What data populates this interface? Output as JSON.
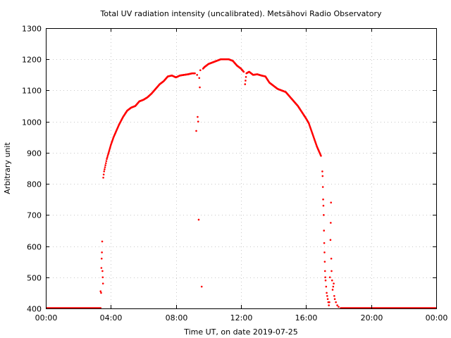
{
  "chart_data": {
    "type": "scatter",
    "title": "Total UV radiation intensity (uncalibrated). Metsähovi Radio Observatory",
    "xlabel": "Time UT, on date 2019-07-25",
    "ylabel": "Arbitrary unit",
    "xlim": [
      "00:00",
      "24:00"
    ],
    "ylim": [
      400,
      1300
    ],
    "x_ticks": [
      "00:00",
      "04:00",
      "08:00",
      "12:00",
      "16:00",
      "20:00",
      "00:00"
    ],
    "y_ticks": [
      400,
      500,
      600,
      700,
      800,
      900,
      1000,
      1100,
      1200,
      1300
    ],
    "grid": true,
    "point_color": "#ff0000",
    "baseline_value": 400,
    "baseline_ranges": [
      [
        "00:00",
        "03:25"
      ],
      [
        "18:05",
        "24:00"
      ]
    ],
    "series": [
      {
        "points": [
          [
            "03:22",
            455
          ],
          [
            "03:24",
            450
          ],
          [
            "03:25",
            530
          ],
          [
            "03:26",
            560
          ],
          [
            "03:27",
            580
          ],
          [
            "03:28",
            615
          ],
          [
            "03:29",
            520
          ],
          [
            "03:30",
            500
          ],
          [
            "03:31",
            480
          ],
          [
            "03:32",
            820
          ],
          [
            "03:35",
            840
          ],
          [
            "03:40",
            860
          ],
          [
            "03:45",
            880
          ],
          [
            "03:50",
            895
          ],
          [
            "04:00",
            925
          ],
          [
            "04:10",
            950
          ],
          [
            "04:20",
            970
          ],
          [
            "04:30",
            990
          ],
          [
            "04:45",
            1015
          ],
          [
            "05:00",
            1035
          ],
          [
            "05:15",
            1045
          ],
          [
            "05:30",
            1050
          ],
          [
            "05:45",
            1065
          ],
          [
            "06:00",
            1070
          ],
          [
            "06:15",
            1078
          ],
          [
            "06:30",
            1090
          ],
          [
            "06:45",
            1105
          ],
          [
            "07:00",
            1120
          ],
          [
            "07:15",
            1130
          ],
          [
            "07:30",
            1145
          ],
          [
            "07:45",
            1148
          ],
          [
            "08:00",
            1142
          ],
          [
            "08:15",
            1148
          ],
          [
            "08:30",
            1150
          ],
          [
            "08:45",
            1152
          ],
          [
            "09:00",
            1155
          ],
          [
            "09:10",
            1155
          ],
          [
            "09:15",
            970
          ],
          [
            "09:18",
            1150
          ],
          [
            "09:20",
            1015
          ],
          [
            "09:22",
            1000
          ],
          [
            "09:24",
            685
          ],
          [
            "09:26",
            1140
          ],
          [
            "09:28",
            1110
          ],
          [
            "09:30",
            1165
          ],
          [
            "09:35",
            470
          ],
          [
            "09:40",
            1170
          ],
          [
            "09:45",
            1175
          ],
          [
            "10:00",
            1185
          ],
          [
            "10:15",
            1190
          ],
          [
            "10:30",
            1195
          ],
          [
            "10:45",
            1200
          ],
          [
            "11:00",
            1200
          ],
          [
            "11:15",
            1200
          ],
          [
            "11:30",
            1195
          ],
          [
            "11:45",
            1180
          ],
          [
            "12:00",
            1170
          ],
          [
            "12:10",
            1160
          ],
          [
            "12:15",
            1120
          ],
          [
            "12:20",
            1155
          ],
          [
            "12:30",
            1160
          ],
          [
            "12:45",
            1150
          ],
          [
            "13:00",
            1152
          ],
          [
            "13:15",
            1148
          ],
          [
            "13:30",
            1145
          ],
          [
            "13:45",
            1125
          ],
          [
            "14:00",
            1115
          ],
          [
            "14:15",
            1105
          ],
          [
            "14:30",
            1100
          ],
          [
            "14:45",
            1095
          ],
          [
            "15:00",
            1080
          ],
          [
            "15:15",
            1065
          ],
          [
            "15:30",
            1050
          ],
          [
            "15:45",
            1030
          ],
          [
            "16:00",
            1010
          ],
          [
            "16:10",
            995
          ],
          [
            "16:20",
            970
          ],
          [
            "16:30",
            945
          ],
          [
            "16:40",
            920
          ],
          [
            "16:50",
            900
          ],
          [
            "16:55",
            890
          ],
          [
            "17:00",
            840
          ],
          [
            "17:01",
            825
          ],
          [
            "17:02",
            790
          ],
          [
            "17:03",
            750
          ],
          [
            "17:04",
            730
          ],
          [
            "17:05",
            700
          ],
          [
            "17:06",
            650
          ],
          [
            "17:07",
            610
          ],
          [
            "17:08",
            580
          ],
          [
            "17:09",
            550
          ],
          [
            "17:10",
            520
          ],
          [
            "17:11",
            500
          ],
          [
            "17:12",
            490
          ],
          [
            "17:14",
            470
          ],
          [
            "17:16",
            450
          ],
          [
            "17:18",
            440
          ],
          [
            "17:20",
            430
          ],
          [
            "17:22",
            420
          ],
          [
            "17:24",
            410
          ],
          [
            "17:26",
            420
          ],
          [
            "17:28",
            500
          ],
          [
            "17:30",
            620
          ],
          [
            "17:31",
            675
          ],
          [
            "17:32",
            740
          ],
          [
            "17:33",
            560
          ],
          [
            "17:34",
            520
          ],
          [
            "17:36",
            490
          ],
          [
            "17:38",
            460
          ],
          [
            "17:40",
            470
          ],
          [
            "17:42",
            480
          ],
          [
            "17:44",
            440
          ],
          [
            "17:46",
            430
          ],
          [
            "17:50",
            420
          ],
          [
            "17:55",
            410
          ],
          [
            "18:00",
            405
          ]
        ]
      }
    ]
  }
}
